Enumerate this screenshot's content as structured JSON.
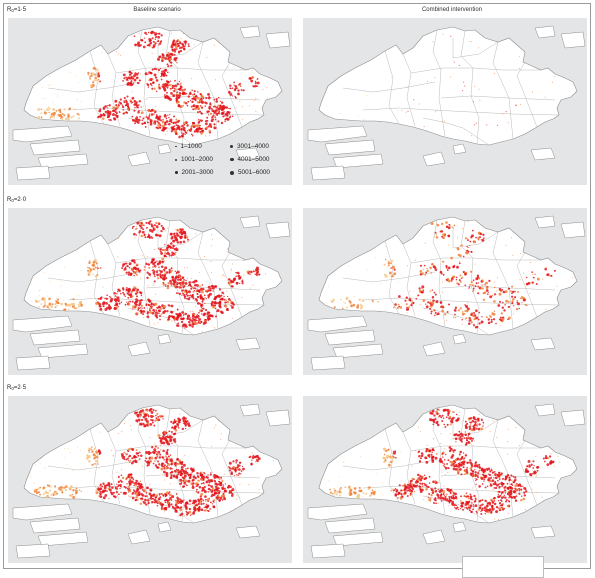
{
  "columns": {
    "left_title": "Baseline scenario",
    "right_title": "Combined intervention"
  },
  "rows": [
    {
      "label_prefix": "R",
      "label_sub": "0",
      "label_value": "=1·5"
    },
    {
      "label_prefix": "R",
      "label_sub": "0",
      "label_value": "=2·0"
    },
    {
      "label_prefix": "R",
      "label_sub": "0",
      "label_value": "=2·5"
    }
  ],
  "legend": {
    "items": [
      {
        "label": "1–1000",
        "size_rank": 1
      },
      {
        "label": "1001–2000",
        "size_rank": 2
      },
      {
        "label": "2001–3000",
        "size_rank": 3
      },
      {
        "label": "3001–4000",
        "size_rank": 4
      },
      {
        "label": "4001–5000",
        "size_rank": 5
      },
      {
        "label": "5001–6000",
        "size_rank": 6
      }
    ]
  },
  "panels": [
    {
      "scenario": "Baseline scenario",
      "r0": "1·5",
      "intensity": 1.0
    },
    {
      "scenario": "Combined intervention",
      "r0": "1·5",
      "intensity": 0.04
    },
    {
      "scenario": "Baseline scenario",
      "r0": "2·0",
      "intensity": 1.05
    },
    {
      "scenario": "Combined intervention",
      "r0": "2·0",
      "intensity": 0.45
    },
    {
      "scenario": "Baseline scenario",
      "r0": "2·5",
      "intensity": 1.15
    },
    {
      "scenario": "Combined intervention",
      "r0": "2·5",
      "intensity": 1.0
    }
  ],
  "colors": {
    "high": "#e3141b",
    "mid": "#f0823a",
    "low": "#f6c88a",
    "land": "#ffffff",
    "sea": "#e4e5e6",
    "boundary": "#8c8c8c"
  }
}
